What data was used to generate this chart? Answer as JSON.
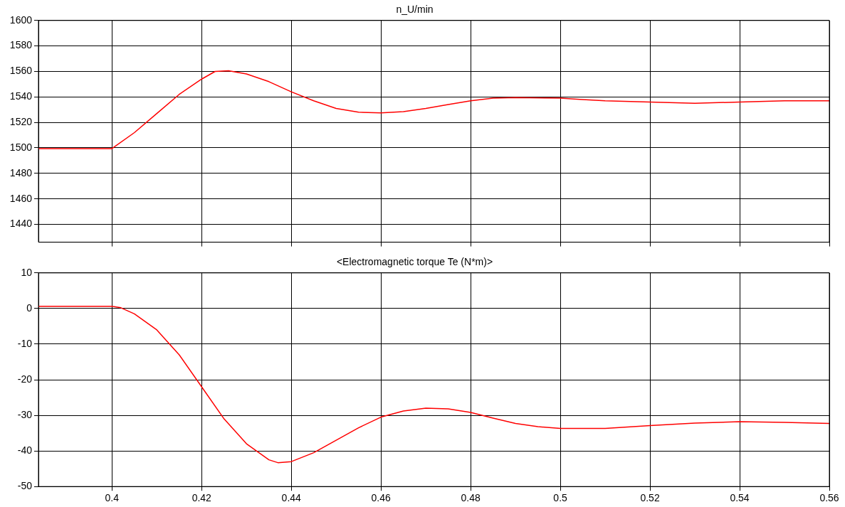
{
  "chart_data": [
    {
      "type": "line",
      "title": "n_U/min",
      "grid": true,
      "tick_labels": "y",
      "marker": "none",
      "line_style": "solid",
      "xlim": [
        0.3836,
        0.56
      ],
      "xticks": [
        0.4,
        0.42,
        0.44,
        0.46,
        0.48,
        0.5,
        0.52,
        0.54,
        0.56
      ],
      "ylim": [
        1426,
        1600
      ],
      "yticks": [
        1440,
        1460,
        1480,
        1500,
        1520,
        1540,
        1560,
        1580,
        1600
      ],
      "series": [
        {
          "color": "#ff0000",
          "x": [
            0.3836,
            0.4,
            0.405,
            0.41,
            0.415,
            0.42,
            0.423,
            0.426,
            0.43,
            0.435,
            0.44,
            0.445,
            0.45,
            0.455,
            0.46,
            0.465,
            0.47,
            0.475,
            0.48,
            0.485,
            0.49,
            0.5,
            0.505,
            0.51,
            0.52,
            0.53,
            0.54,
            0.55,
            0.56
          ],
          "values": [
            1499.5,
            1499.5,
            1512,
            1527,
            1542,
            1554,
            1560,
            1560.5,
            1558,
            1552,
            1544,
            1537,
            1531,
            1528,
            1527.5,
            1528.5,
            1531,
            1534,
            1537,
            1539,
            1539.5,
            1539,
            1538,
            1537,
            1536,
            1535,
            1536,
            1537,
            1537
          ]
        }
      ]
    },
    {
      "type": "line",
      "title": "<Electromagnetic torque Te (N*m)>",
      "grid": true,
      "marker": "none",
      "line_style": "solid",
      "xlim": [
        0.3836,
        0.56
      ],
      "xticks": [
        0.4,
        0.42,
        0.44,
        0.46,
        0.48,
        0.5,
        0.52,
        0.54,
        0.56
      ],
      "ylim": [
        -50,
        10
      ],
      "yticks": [
        -50,
        -40,
        -30,
        -20,
        -10,
        0,
        10
      ],
      "series": [
        {
          "color": "#ff0000",
          "x": [
            0.3836,
            0.4,
            0.402,
            0.405,
            0.41,
            0.415,
            0.42,
            0.425,
            0.43,
            0.435,
            0.437,
            0.44,
            0.445,
            0.45,
            0.455,
            0.46,
            0.465,
            0.47,
            0.475,
            0.48,
            0.485,
            0.49,
            0.495,
            0.5,
            0.51,
            0.52,
            0.53,
            0.54,
            0.55,
            0.56
          ],
          "values": [
            0.6,
            0.6,
            0.2,
            -1.5,
            -6,
            -13,
            -22,
            -31,
            -38,
            -42.5,
            -43.3,
            -43,
            -40.5,
            -37,
            -33.5,
            -30.5,
            -28.8,
            -28,
            -28.2,
            -29.2,
            -30.8,
            -32.3,
            -33.2,
            -33.7,
            -33.7,
            -32.9,
            -32.2,
            -31.8,
            -32,
            -32.3
          ]
        }
      ]
    }
  ]
}
